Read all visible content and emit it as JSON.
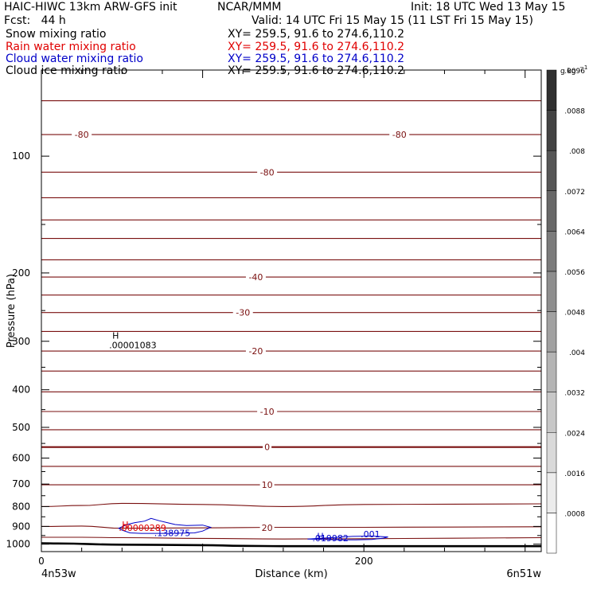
{
  "header": {
    "title_left": "HAIC-HIWC 13km ARW-GFS init",
    "title_center": "NCAR/MMM",
    "init": "Init: 18 UTC Wed 13 May 15",
    "fcst": "Fcst:   44 h",
    "valid": "Valid: 14 UTC Fri 15 May 15 (11 LST Fri 15 May 15)"
  },
  "fields": [
    {
      "name": "Snow mixing ratio",
      "xy": "XY= 259.5, 91.6 to 274.6,110.2",
      "color": "#000000"
    },
    {
      "name": "Rain water mixing ratio",
      "xy": "XY= 259.5, 91.6 to 274.6,110.2",
      "color": "#e00000"
    },
    {
      "name": "Cloud water mixing ratio",
      "xy": "XY= 259.5, 91.6 to 274.6,110.2",
      "color": "#0000c8"
    },
    {
      "name": "Cloud ice mixing ratio",
      "xy": "XY= 259.5, 91.6 to 274.6,110.2",
      "color": "#000000"
    }
  ],
  "chart_data": {
    "type": "contour",
    "xlabel": "Distance (km)",
    "ylabel": "Pressure (hPa)",
    "x_ticks": [
      0,
      200
    ],
    "xlim": [
      0,
      310
    ],
    "y_ticks": [
      100,
      200,
      300,
      400,
      500,
      600,
      700,
      800,
      900,
      1000
    ],
    "ylim": [
      1045,
      60
    ],
    "x_endpoints": {
      "left": "4n53w",
      "right": "6n51w"
    },
    "colorbar": {
      "unit": "g kg",
      "unit_exponent": "−1",
      "labels": [
        ".0008",
        ".0016",
        ".0024",
        ".0032",
        ".004",
        ".0048",
        ".0056",
        ".0064",
        ".0072",
        ".008",
        ".0088",
        ".0096"
      ],
      "levels": [
        0.0004,
        0.0012,
        0.002,
        0.0028,
        0.0036,
        0.0044,
        0.0052,
        0.006,
        0.0068,
        0.0076,
        0.0084,
        0.0092,
        0.01
      ]
    },
    "temperature_contours": {
      "color": "#7a1010",
      "lines": [
        {
          "p": [
            72,
            72,
            72,
            72,
            72,
            72,
            72
          ]
        },
        {
          "p": [
            88,
            88,
            88,
            88,
            88,
            88,
            88
          ]
        },
        {
          "p": [
            110,
            110,
            110,
            110,
            110,
            110,
            110
          ]
        },
        {
          "p": [
            128,
            128,
            128,
            128,
            128,
            128,
            128
          ]
        },
        {
          "p": [
            146,
            146,
            146,
            146,
            146,
            146,
            146
          ]
        },
        {
          "p": [
            163,
            163,
            163,
            163,
            163,
            163,
            163
          ]
        },
        {
          "p": [
            185,
            185,
            185,
            185,
            185,
            185,
            185
          ]
        },
        {
          "p": [
            205,
            205,
            205,
            205,
            205,
            205,
            205
          ]
        },
        {
          "p": [
            228,
            228,
            228,
            228,
            228,
            228,
            228
          ]
        },
        {
          "p": [
            253,
            253,
            253,
            253,
            253,
            253,
            253
          ]
        },
        {
          "p": [
            283,
            283,
            283,
            283,
            283,
            283,
            283
          ]
        },
        {
          "p": [
            318,
            318,
            318,
            318,
            318,
            318,
            318
          ]
        },
        {
          "p": [
            358,
            358,
            358,
            358,
            358,
            358,
            358
          ]
        },
        {
          "p": [
            405,
            405,
            405,
            405,
            405,
            405,
            405
          ]
        },
        {
          "p": [
            455,
            455,
            455,
            455,
            455,
            455,
            455
          ]
        },
        {
          "p": [
            507,
            507,
            507,
            507,
            507,
            507,
            507
          ]
        },
        {
          "p": [
            562,
            562,
            562,
            562,
            562,
            562,
            562
          ],
          "bold": true
        },
        {
          "p": [
            630,
            630,
            630,
            630,
            630,
            630,
            630
          ]
        },
        {
          "p": [
            703,
            703,
            703,
            703,
            703,
            703,
            703
          ]
        },
        {
          "p": [
            800,
            795,
            785,
            790,
            800,
            790,
            787
          ]
        },
        {
          "p": [
            900,
            898,
            910,
            908,
            905,
            905,
            902
          ]
        },
        {
          "p": [
            960,
            960,
            962,
            966,
            970,
            968,
            962
          ]
        }
      ],
      "x": [
        0,
        25,
        50,
        100,
        150,
        200,
        310
      ],
      "labels": [
        {
          "text": "-80",
          "x": 25,
          "p": 88
        },
        {
          "text": "-80",
          "x": 222,
          "p": 88
        },
        {
          "text": "-80",
          "x": 140,
          "p": 110
        },
        {
          "text": "-40",
          "x": 133,
          "p": 205
        },
        {
          "text": "-30",
          "x": 125,
          "p": 253
        },
        {
          "text": "-20",
          "x": 133,
          "p": 318
        },
        {
          "text": "-10",
          "x": 140,
          "p": 455
        },
        {
          "text": "0",
          "x": 140,
          "p": 562
        },
        {
          "text": "10",
          "x": 140,
          "p": 703
        },
        {
          "text": "20",
          "x": 140,
          "p": 908
        }
      ]
    },
    "terrain": {
      "x": [
        0,
        10,
        50,
        100,
        125,
        150,
        310
      ],
      "p": [
        995,
        996,
        1003,
        1006,
        1010,
        1012,
        1012
      ]
    },
    "cloud_water_contours": {
      "color": "#0000c8",
      "polygons": [
        {
          "x": [
            48,
            53,
            58,
            64,
            68,
            73,
            77,
            83,
            90,
            100,
            105,
            100,
            95,
            80,
            70,
            62,
            55,
            50
          ],
          "p": [
            910,
            890,
            880,
            872,
            858,
            870,
            878,
            890,
            895,
            893,
            905,
            925,
            935,
            938,
            938,
            938,
            935,
            920
          ]
        },
        {
          "x": [
            165,
            175,
            185,
            195,
            205,
            212,
            215,
            205,
            193
          ],
          "p": [
            970,
            972,
            975,
            975,
            972,
            965,
            958,
            953,
            955
          ]
        }
      ],
      "labels": [
        {
          "text": ".138975",
          "x": 70,
          "p": 935
        },
        {
          "text": ".019982",
          "x": 168,
          "p": 965
        },
        {
          "text": ".001",
          "x": 198,
          "p": 942
        }
      ]
    },
    "extrema": [
      {
        "text": "H",
        "x": 44,
        "p": 290,
        "color": "#000000"
      },
      {
        "text": ".00001083",
        "x": 42,
        "p": 307,
        "color": "#000000"
      },
      {
        "text": "H",
        "x": 50,
        "p": 890,
        "color": "#e00000"
      },
      {
        "text": ".00000289",
        "x": 48,
        "p": 907,
        "color": "#e00000"
      },
      {
        "text": "H",
        "x": 171,
        "p": 952,
        "color": "#0000c8"
      }
    ]
  }
}
